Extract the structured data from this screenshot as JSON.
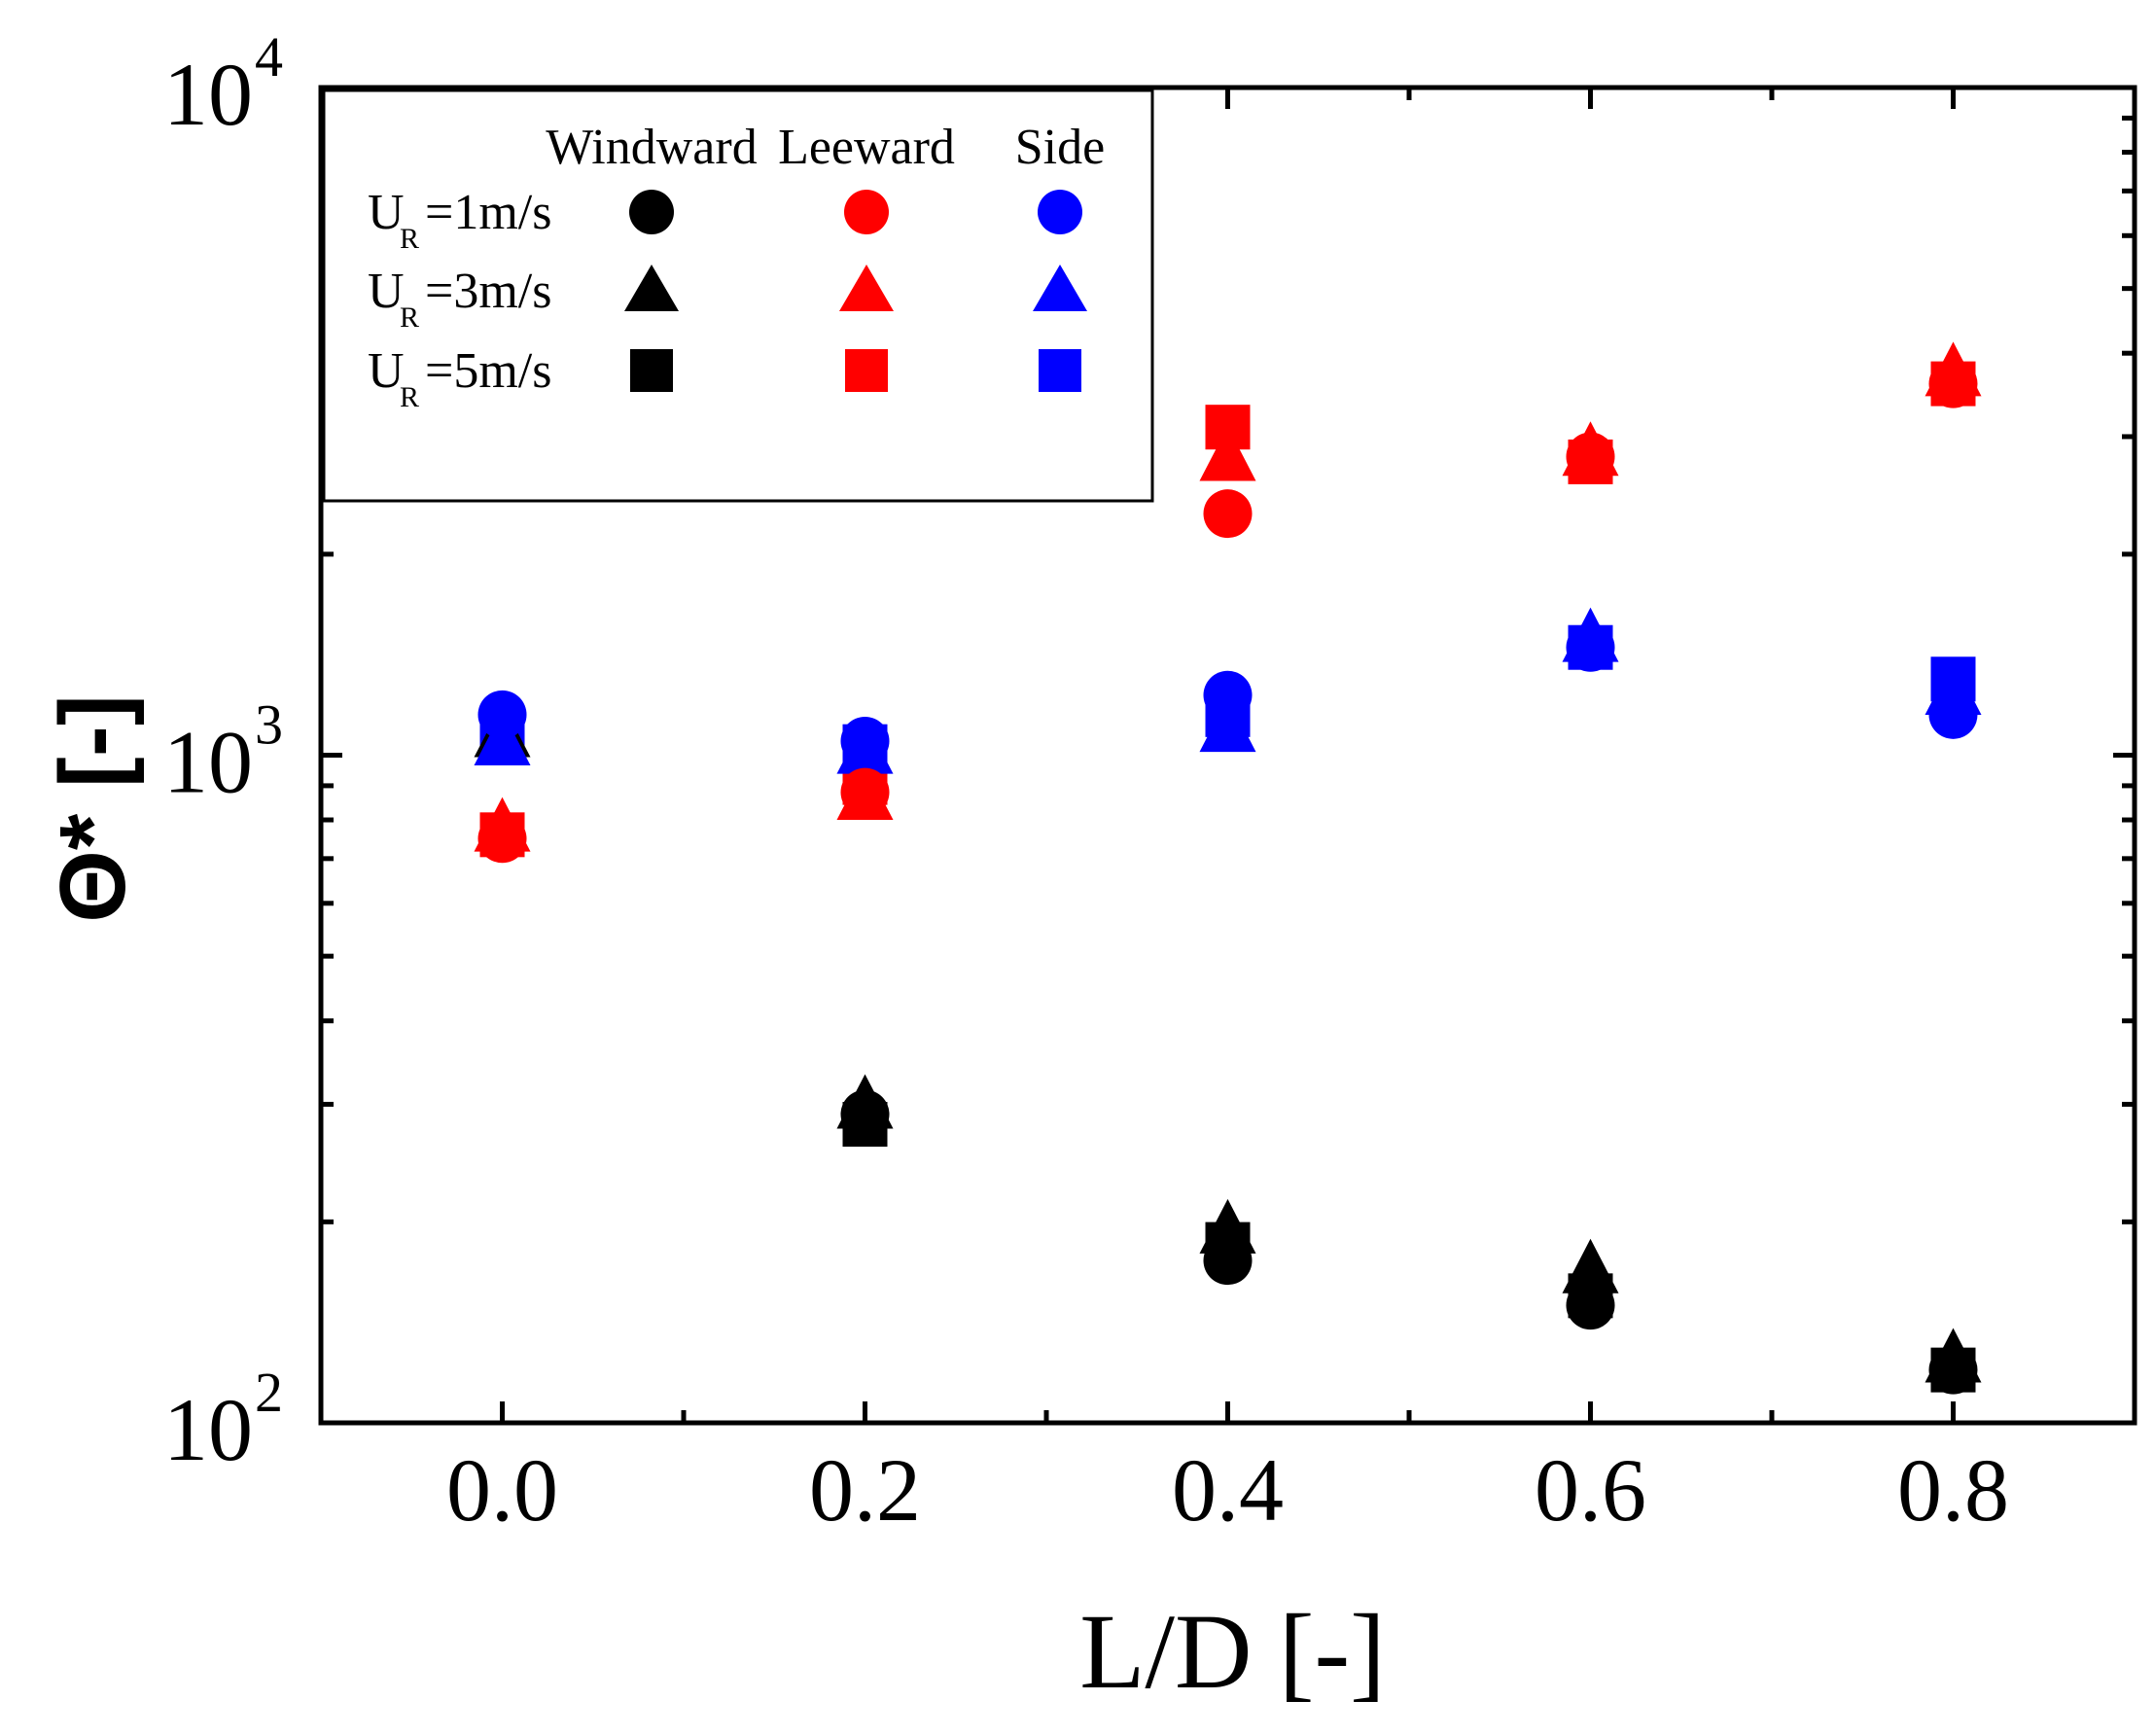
{
  "chart_data": {
    "type": "scatter",
    "title": "",
    "xlabel": "L/D [-]",
    "ylabel": "Θ* [-]",
    "x_scale": "linear",
    "y_scale": "log",
    "xlim": [
      -0.1,
      0.9
    ],
    "ylim": [
      100,
      10000
    ],
    "x_ticks": [
      0.0,
      0.2,
      0.4,
      0.6,
      0.8
    ],
    "x_tick_labels": [
      "0.0",
      "0.2",
      "0.4",
      "0.6",
      "0.8"
    ],
    "y_tick_labels": [
      {
        "base": "10",
        "exp": "2",
        "value": 100
      },
      {
        "base": "10",
        "exp": "3",
        "value": 1000
      },
      {
        "base": "10",
        "exp": "4",
        "value": 10000
      }
    ],
    "grid": false,
    "legend": {
      "position": "top-left",
      "columns": [
        "Windward",
        "Leeward",
        "Side"
      ],
      "rows": [
        {
          "main": "U",
          "sub": "R",
          "rest": "=1m/s",
          "marker": "circle"
        },
        {
          "main": "U",
          "sub": "R",
          "rest": "=3m/s",
          "marker": "triangle"
        },
        {
          "main": "U",
          "sub": "R",
          "rest": "=5m/s",
          "marker": "square"
        }
      ]
    },
    "colors": {
      "Windward": "#000000",
      "Leeward": "#ff0000",
      "Side": "#0000ff"
    },
    "x": [
      0.0,
      0.2,
      0.4,
      0.6,
      0.8
    ],
    "series": [
      {
        "name": "Windward U_R=1m/s",
        "group": "Windward",
        "marker": "circle",
        "values": [
          null,
          290,
          175,
          150,
          120
        ]
      },
      {
        "name": "Windward U_R=3m/s",
        "group": "Windward",
        "marker": "triangle",
        "values": [
          1080,
          300,
          195,
          170,
          125
        ]
      },
      {
        "name": "Windward U_R=5m/s",
        "group": "Windward",
        "marker": "square",
        "values": [
          null,
          280,
          185,
          155,
          120
        ]
      },
      {
        "name": "Leeward U_R=1m/s",
        "group": "Leeward",
        "marker": "circle",
        "values": [
          750,
          880,
          2300,
          2800,
          3600
        ]
      },
      {
        "name": "Leeward U_R=3m/s",
        "group": "Leeward",
        "marker": "triangle",
        "values": [
          780,
          870,
          2800,
          2850,
          3750
        ]
      },
      {
        "name": "Leeward U_R=5m/s",
        "group": "Leeward",
        "marker": "square",
        "values": [
          760,
          910,
          3100,
          2750,
          3600
        ]
      },
      {
        "name": "Side U_R=1m/s",
        "group": "Side",
        "marker": "circle",
        "values": [
          1150,
          1050,
          1230,
          1450,
          1150
        ]
      },
      {
        "name": "Side U_R=3m/s",
        "group": "Side",
        "marker": "triangle",
        "values": [
          1050,
          1020,
          1100,
          1500,
          1250
        ]
      },
      {
        "name": "Side U_R=5m/s",
        "group": "Side",
        "marker": "square",
        "values": [
          1100,
          1030,
          1150,
          1450,
          1300
        ]
      }
    ]
  }
}
